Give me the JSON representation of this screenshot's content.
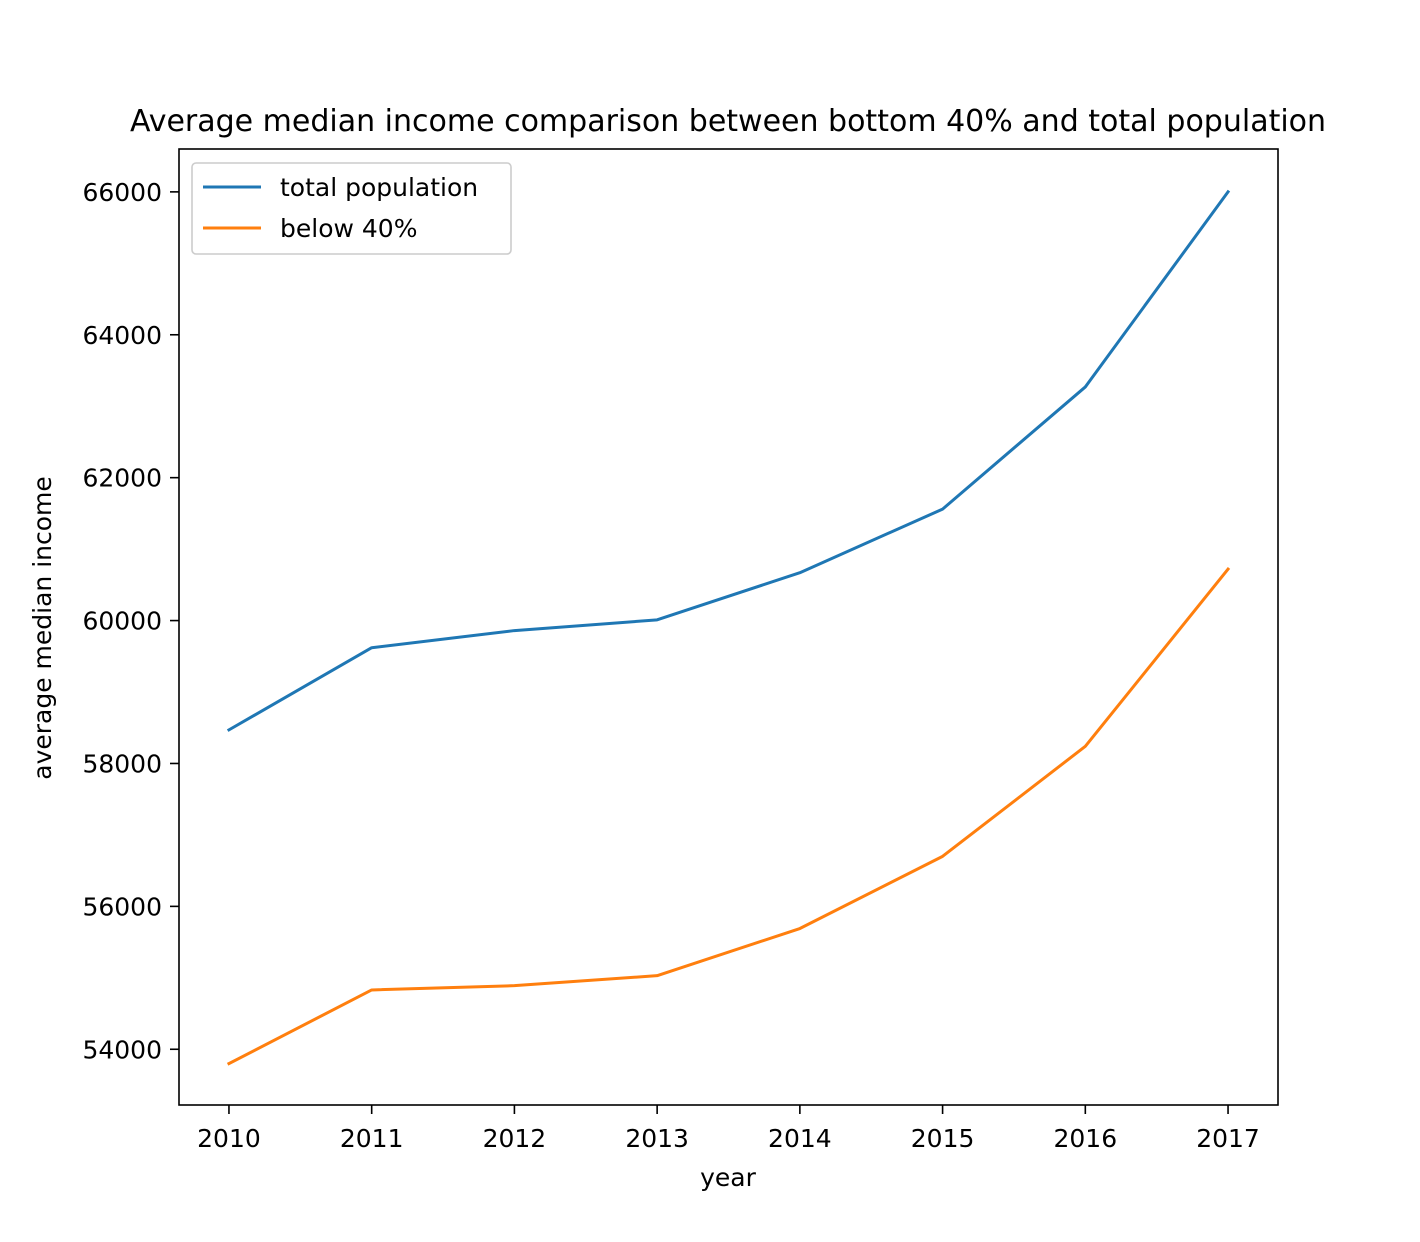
{
  "chart_data": {
    "type": "line",
    "title": "Average median income comparison between bottom 40% and total population",
    "xlabel": "year",
    "ylabel": "average median income",
    "x": [
      2010,
      2011,
      2012,
      2013,
      2014,
      2015,
      2016,
      2017
    ],
    "xticks": [
      2010,
      2011,
      2012,
      2013,
      2014,
      2015,
      2016,
      2017
    ],
    "yticks": [
      54000,
      56000,
      58000,
      60000,
      62000,
      64000,
      66000
    ],
    "xlim": [
      2009.65,
      2017.35
    ],
    "ylim": [
      53220,
      66600
    ],
    "grid": false,
    "legend_position": "top-left",
    "series": [
      {
        "name": "total population",
        "color": "#1f77b4",
        "values": [
          58470,
          59620,
          59860,
          60010,
          60670,
          61560,
          63270,
          66000
        ]
      },
      {
        "name": "below 40%",
        "color": "#ff7f0e",
        "values": [
          53800,
          54830,
          54890,
          55030,
          55690,
          56700,
          58240,
          60720
        ]
      }
    ]
  }
}
